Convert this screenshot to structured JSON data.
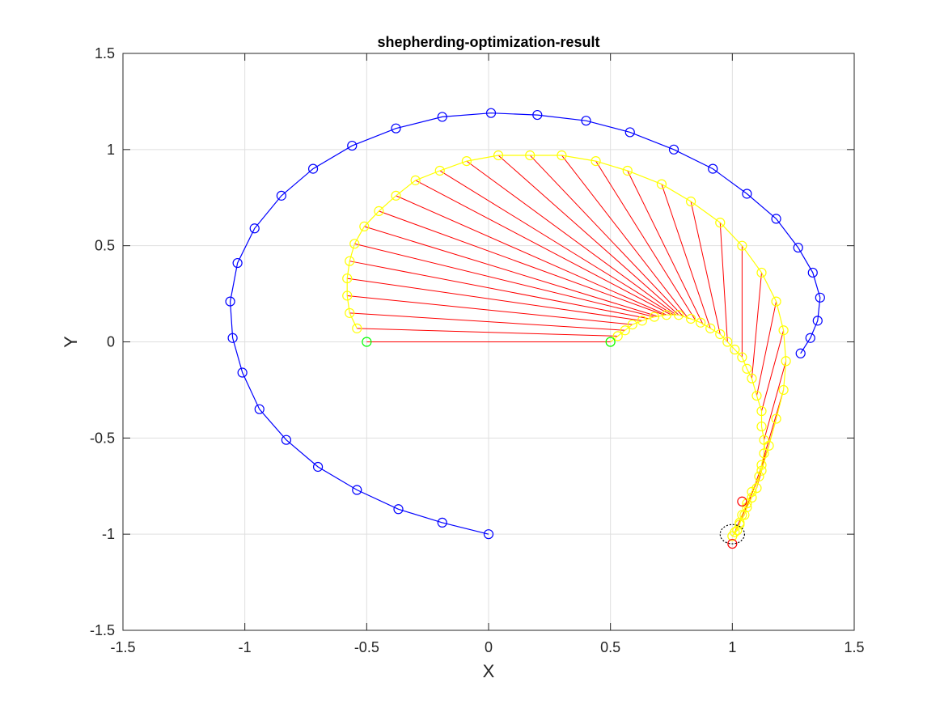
{
  "chart_data": {
    "type": "line",
    "title": "shepherding-optimization-result",
    "xlabel": "X",
    "ylabel": "Y",
    "xlim": [
      -1.5,
      1.5
    ],
    "ylim": [
      -1.5,
      1.5
    ],
    "xticks": [
      -1.5,
      -1,
      -0.5,
      0,
      0.5,
      1,
      1.5
    ],
    "yticks": [
      -1.5,
      -1,
      -0.5,
      0,
      0.5,
      1,
      1.5
    ],
    "xtick_labels": [
      "-1.5",
      "-1",
      "-0.5",
      "0",
      "0.5",
      "1",
      "1.5"
    ],
    "ytick_labels": [
      "-1.5",
      "-1",
      "-0.5",
      "0",
      "0.5",
      "1",
      "1.5"
    ],
    "grid": true,
    "box": true,
    "colors": {
      "blue": "#0000ff",
      "yellow": "#ffff00",
      "red": "#ff0000",
      "green": "#00ff00",
      "black": "#000000",
      "grid": "#dfdfdf",
      "axis": "#262626"
    },
    "series": [
      {
        "color": "#0000ff",
        "marker": "circle",
        "line": true,
        "points": [
          [
            0.0,
            -1.0
          ],
          [
            -0.19,
            -0.94
          ],
          [
            -0.37,
            -0.87
          ],
          [
            -0.54,
            -0.77
          ],
          [
            -0.7,
            -0.65
          ],
          [
            -0.83,
            -0.51
          ],
          [
            -0.94,
            -0.35
          ],
          [
            -1.01,
            -0.16
          ],
          [
            -1.05,
            0.02
          ],
          [
            -1.06,
            0.21
          ],
          [
            -1.03,
            0.41
          ],
          [
            -0.96,
            0.59
          ],
          [
            -0.85,
            0.76
          ],
          [
            -0.72,
            0.9
          ],
          [
            -0.56,
            1.02
          ],
          [
            -0.38,
            1.11
          ],
          [
            -0.19,
            1.17
          ],
          [
            0.01,
            1.19
          ],
          [
            0.2,
            1.18
          ],
          [
            0.4,
            1.15
          ],
          [
            0.58,
            1.09
          ],
          [
            0.76,
            1.0
          ],
          [
            0.92,
            0.9
          ],
          [
            1.06,
            0.77
          ],
          [
            1.18,
            0.64
          ],
          [
            1.27,
            0.49
          ],
          [
            1.33,
            0.36
          ],
          [
            1.36,
            0.23
          ],
          [
            1.35,
            0.11
          ],
          [
            1.32,
            0.02
          ],
          [
            1.28,
            -0.06
          ]
        ]
      },
      {
        "color": "#ffff00",
        "marker": "circle",
        "line": true,
        "points": [
          [
            -0.54,
            0.07
          ],
          [
            -0.57,
            0.15
          ],
          [
            -0.58,
            0.24
          ],
          [
            -0.58,
            0.33
          ],
          [
            -0.57,
            0.42
          ],
          [
            -0.55,
            0.51
          ],
          [
            -0.51,
            0.6
          ],
          [
            -0.45,
            0.68
          ],
          [
            -0.38,
            0.76
          ],
          [
            -0.3,
            0.84
          ],
          [
            -0.2,
            0.89
          ],
          [
            -0.09,
            0.94
          ],
          [
            0.04,
            0.97
          ],
          [
            0.17,
            0.97
          ],
          [
            0.3,
            0.97
          ],
          [
            0.44,
            0.94
          ],
          [
            0.57,
            0.89
          ],
          [
            0.71,
            0.82
          ],
          [
            0.83,
            0.73
          ],
          [
            0.95,
            0.62
          ],
          [
            1.04,
            0.5
          ],
          [
            1.12,
            0.36
          ],
          [
            1.18,
            0.21
          ],
          [
            1.21,
            0.06
          ],
          [
            1.22,
            -0.1
          ],
          [
            1.21,
            -0.25
          ],
          [
            1.18,
            -0.4
          ],
          [
            1.15,
            -0.54
          ],
          [
            1.12,
            -0.67
          ],
          [
            1.08,
            -0.78
          ],
          [
            1.06,
            -0.84
          ],
          [
            1.04,
            -0.9
          ],
          [
            1.03,
            -0.95
          ],
          [
            1.01,
            -0.99
          ]
        ]
      },
      {
        "color": "#ffff00",
        "marker": "circle",
        "line": true,
        "points": [
          [
            0.5,
            0.0
          ],
          [
            0.53,
            0.03
          ],
          [
            0.56,
            0.06
          ],
          [
            0.59,
            0.09
          ],
          [
            0.63,
            0.11
          ],
          [
            0.68,
            0.13
          ],
          [
            0.73,
            0.14
          ],
          [
            0.78,
            0.14
          ],
          [
            0.83,
            0.12
          ],
          [
            0.87,
            0.1
          ],
          [
            0.91,
            0.07
          ],
          [
            0.95,
            0.04
          ],
          [
            0.98,
            0.0
          ],
          [
            1.01,
            -0.04
          ],
          [
            1.04,
            -0.08
          ],
          [
            1.06,
            -0.14
          ],
          [
            1.08,
            -0.19
          ],
          [
            1.1,
            -0.28
          ],
          [
            1.12,
            -0.36
          ],
          [
            1.12,
            -0.44
          ],
          [
            1.13,
            -0.51
          ],
          [
            1.13,
            -0.58
          ],
          [
            1.12,
            -0.64
          ],
          [
            1.11,
            -0.7
          ],
          [
            1.1,
            -0.76
          ],
          [
            1.08,
            -0.81
          ],
          [
            1.06,
            -0.86
          ],
          [
            1.05,
            -0.9
          ],
          [
            1.03,
            -0.94
          ],
          [
            1.02,
            -0.98
          ],
          [
            1.0,
            -1.01
          ]
        ]
      },
      {
        "color": "#00ff00",
        "marker": "circle",
        "line": false,
        "points": [
          [
            -0.5,
            0.0
          ],
          [
            0.5,
            0.0
          ]
        ]
      },
      {
        "color": "#ff0000",
        "marker": "circle",
        "line": false,
        "points": [
          [
            1.04,
            -0.83
          ],
          [
            1.0,
            -1.05
          ]
        ]
      }
    ],
    "red_connection_lines": [
      {
        "from": [
          -0.5,
          0.0
        ],
        "to": [
          0.5,
          0.0
        ]
      },
      {
        "from": [
          -0.54,
          0.07
        ],
        "to": [
          0.53,
          0.03
        ]
      },
      {
        "from": [
          -0.57,
          0.15
        ],
        "to": [
          0.56,
          0.06
        ]
      },
      {
        "from": [
          -0.58,
          0.24
        ],
        "to": [
          0.59,
          0.09
        ]
      },
      {
        "from": [
          -0.58,
          0.33
        ],
        "to": [
          0.63,
          0.11
        ]
      },
      {
        "from": [
          -0.57,
          0.42
        ],
        "to": [
          0.66,
          0.12
        ]
      },
      {
        "from": [
          -0.55,
          0.51
        ],
        "to": [
          0.68,
          0.13
        ]
      },
      {
        "from": [
          -0.51,
          0.6
        ],
        "to": [
          0.7,
          0.13
        ]
      },
      {
        "from": [
          -0.45,
          0.68
        ],
        "to": [
          0.72,
          0.14
        ]
      },
      {
        "from": [
          -0.38,
          0.76
        ],
        "to": [
          0.73,
          0.14
        ]
      },
      {
        "from": [
          -0.3,
          0.84
        ],
        "to": [
          0.75,
          0.14
        ]
      },
      {
        "from": [
          -0.2,
          0.89
        ],
        "to": [
          0.76,
          0.14
        ]
      },
      {
        "from": [
          -0.09,
          0.94
        ],
        "to": [
          0.77,
          0.14
        ]
      },
      {
        "from": [
          0.04,
          0.97
        ],
        "to": [
          0.78,
          0.14
        ]
      },
      {
        "from": [
          0.17,
          0.97
        ],
        "to": [
          0.8,
          0.13
        ]
      },
      {
        "from": [
          0.3,
          0.97
        ],
        "to": [
          0.82,
          0.12
        ]
      },
      {
        "from": [
          0.44,
          0.94
        ],
        "to": [
          0.85,
          0.11
        ]
      },
      {
        "from": [
          0.57,
          0.89
        ],
        "to": [
          0.88,
          0.09
        ]
      },
      {
        "from": [
          0.71,
          0.82
        ],
        "to": [
          0.91,
          0.07
        ]
      },
      {
        "from": [
          0.83,
          0.73
        ],
        "to": [
          0.95,
          0.04
        ]
      },
      {
        "from": [
          0.95,
          0.62
        ],
        "to": [
          0.98,
          0.0
        ]
      },
      {
        "from": [
          1.04,
          0.5
        ],
        "to": [
          1.04,
          -0.08
        ]
      },
      {
        "from": [
          1.12,
          0.36
        ],
        "to": [
          1.08,
          -0.19
        ]
      },
      {
        "from": [
          1.18,
          0.21
        ],
        "to": [
          1.1,
          -0.28
        ]
      },
      {
        "from": [
          1.21,
          0.06
        ],
        "to": [
          1.12,
          -0.36
        ]
      },
      {
        "from": [
          1.22,
          -0.1
        ],
        "to": [
          1.13,
          -0.51
        ]
      },
      {
        "from": [
          1.21,
          -0.25
        ],
        "to": [
          1.12,
          -0.64
        ]
      },
      {
        "from": [
          1.18,
          -0.4
        ],
        "to": [
          1.1,
          -0.76
        ]
      },
      {
        "from": [
          1.15,
          -0.54
        ],
        "to": [
          1.06,
          -0.86
        ]
      },
      {
        "from": [
          1.12,
          -0.67
        ],
        "to": [
          1.03,
          -0.94
        ]
      },
      {
        "from": [
          1.08,
          -0.78
        ],
        "to": [
          1.01,
          -0.99
        ]
      }
    ],
    "black_ellipse": {
      "center": [
        1.0,
        -1.0
      ],
      "rx": 0.05,
      "ry": 0.05,
      "style": "dotted"
    }
  }
}
